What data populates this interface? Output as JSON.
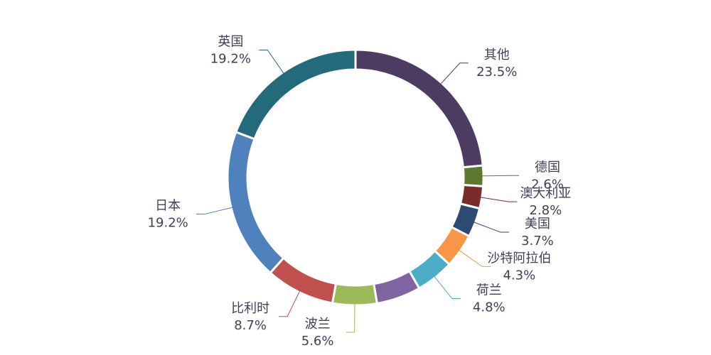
{
  "chart_data": {
    "type": "donut",
    "categories": [
      "其他",
      "德国",
      "澳大利亚",
      "美国",
      "沙特阿拉伯",
      "荷兰",
      null,
      "波兰",
      "比利时",
      "日本",
      "英国"
    ],
    "values": [
      23.5,
      2.6,
      2.8,
      3.7,
      4.3,
      4.8,
      5.6,
      5.6,
      8.7,
      19.2,
      19.2
    ],
    "value_labels": [
      "23.5%",
      "2.6%",
      "2.8%",
      "3.7%",
      "4.3%",
      "4.8%",
      null,
      "5.6%",
      "8.7%",
      "19.2%",
      "19.2%"
    ],
    "colors": [
      "#4e3b62",
      "#5f7830",
      "#7b2b2b",
      "#2c4a72",
      "#f79646",
      "#4bacc6",
      "#8064a2",
      "#9bbb59",
      "#c0504d",
      "#4f81bd",
      "#236b7b"
    ]
  }
}
